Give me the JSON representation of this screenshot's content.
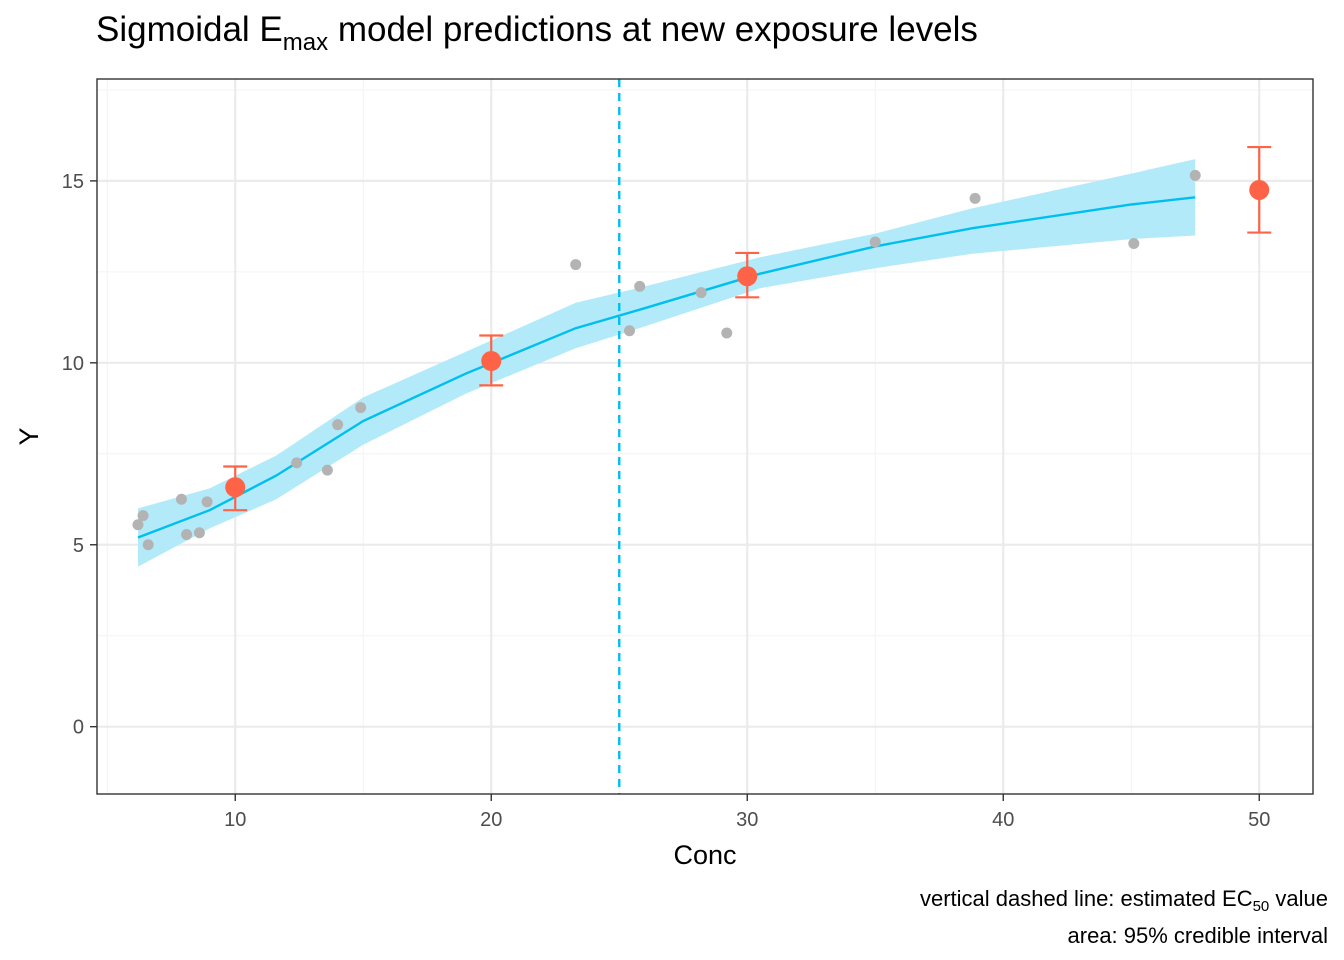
{
  "title": {
    "main": "Sigmoidal E",
    "subscript": "max",
    "rest": " model predictions at new exposure levels"
  },
  "caption": {
    "line1_main": "vertical dashed line: estimated EC",
    "line1_subscript": "50",
    "line1_rest": " value",
    "line2": "area: 95% credible interval"
  },
  "colors": {
    "band": "#b3eaf9",
    "line": "#00bfef",
    "observed": "#b3b3b3",
    "prediction": "#ff6347",
    "grid_major": "#ebebeb",
    "grid_minor": "#f5f5f5",
    "panel_border": "#333333"
  },
  "chart_data": {
    "type": "line",
    "xlabel": "Conc",
    "ylabel": "Y",
    "xlim": [
      4.6,
      52.1
    ],
    "ylim": [
      -1.85,
      17.8
    ],
    "x_ticks": [
      10,
      20,
      30,
      40,
      50
    ],
    "y_ticks": [
      0,
      5,
      10,
      15
    ],
    "x_tick_labels": [
      "10",
      "20",
      "30",
      "40",
      "50"
    ],
    "y_tick_labels": [
      "0",
      "5",
      "10",
      "15"
    ],
    "grid": true,
    "legend": "none",
    "ec50": 25,
    "series": [
      {
        "kind": "fit",
        "x": [
          6.2,
          9.0,
          11.6,
          15.0,
          19.0,
          23.3,
          26.0,
          30.5,
          35.0,
          38.8,
          45.0,
          47.5
        ],
        "y": [
          5.2,
          5.95,
          6.9,
          8.4,
          9.7,
          10.95,
          11.5,
          12.45,
          13.2,
          13.7,
          14.35,
          14.55
        ],
        "lower": [
          4.4,
          5.45,
          6.25,
          7.75,
          9.15,
          10.4,
          11.0,
          12.05,
          12.6,
          13.0,
          13.4,
          13.5
        ],
        "upper": [
          6.0,
          6.55,
          7.45,
          9.05,
          10.3,
          11.65,
          12.1,
          12.9,
          13.55,
          14.25,
          15.2,
          15.6
        ]
      },
      {
        "kind": "observed",
        "x": [
          6.2,
          6.4,
          6.6,
          7.9,
          8.1,
          8.6,
          8.9,
          12.4,
          13.6,
          14.0,
          14.9,
          23.3,
          25.4,
          25.8,
          28.2,
          29.2,
          35.0,
          38.9,
          45.1,
          47.5
        ],
        "y": [
          5.55,
          5.8,
          5.0,
          6.25,
          5.28,
          5.33,
          6.18,
          7.25,
          7.05,
          8.3,
          8.77,
          12.7,
          10.88,
          12.1,
          11.93,
          10.82,
          13.32,
          14.52,
          13.28,
          15.15
        ]
      },
      {
        "kind": "prediction",
        "x": [
          10,
          20,
          30,
          50
        ],
        "y": [
          6.58,
          10.05,
          12.38,
          14.75
        ],
        "lower": [
          5.95,
          9.38,
          11.8,
          13.58
        ],
        "upper": [
          7.15,
          10.75,
          13.02,
          15.93
        ]
      }
    ]
  }
}
